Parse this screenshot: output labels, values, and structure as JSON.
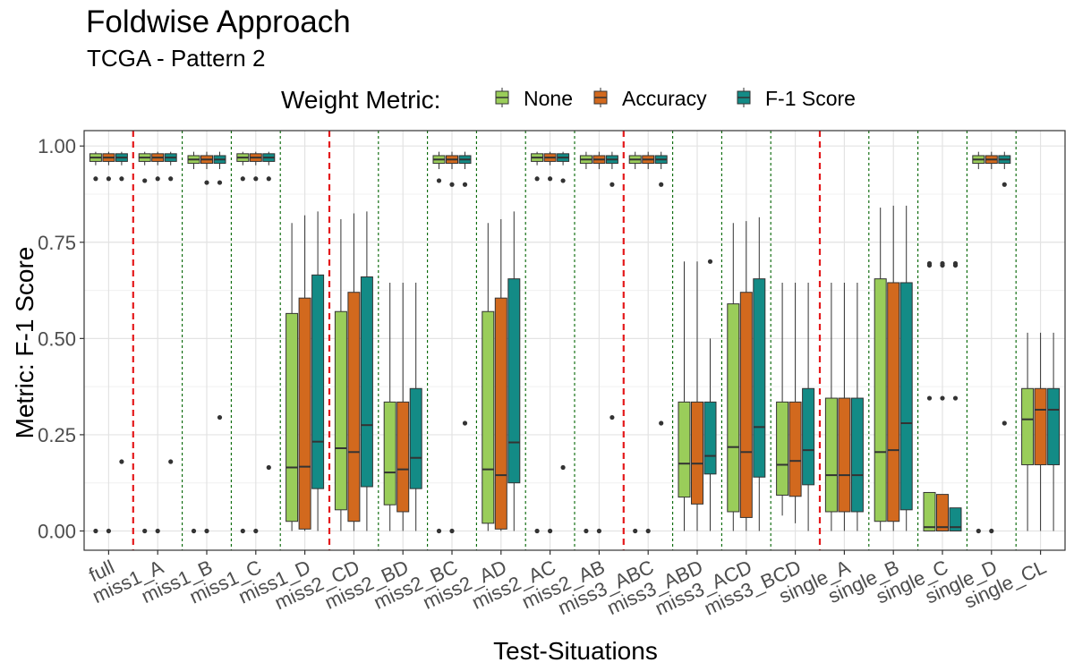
{
  "title": "Foldwise Approach",
  "subtitle": "TCGA - Pattern 2",
  "legend": {
    "title": "Weight Metric:",
    "items": [
      "None",
      "Accuracy",
      "F-1 Score"
    ]
  },
  "colors": {
    "None": "#9ACD5A",
    "Accuracy": "#D2691E",
    "F-1 Score": "#138B86",
    "red_separator": "#E41A1C",
    "green_separator": "#006400"
  },
  "chart_data": {
    "type": "boxplot",
    "title": "Foldwise Approach",
    "subtitle": "TCGA - Pattern 2",
    "xlabel": "Test-Situations",
    "ylabel": "Metric: F-1 Score",
    "ylim": [
      -0.05,
      1.04
    ],
    "y_ticks": [
      "0.00",
      "0.25",
      "0.50",
      "0.75",
      "1.00"
    ],
    "grid": true,
    "legend_position": "top",
    "categories": [
      "full",
      "miss1_A",
      "miss1_B",
      "miss1_C",
      "miss1_D",
      "miss2_CD",
      "miss2_BD",
      "miss2_BC",
      "miss2_AD",
      "miss2_AC",
      "miss2_AB",
      "miss3_ABC",
      "miss3_ABD",
      "miss3_ACD",
      "miss3_BCD",
      "single_A",
      "single_B",
      "single_C",
      "single_D",
      "single_CL"
    ],
    "red_separators_after": [
      "full",
      "miss1_D",
      "miss2_AB",
      "miss3_BCD"
    ],
    "series": [
      {
        "name": "None",
        "boxes": [
          {
            "min": 0.95,
            "q1": 0.96,
            "median": 0.97,
            "q3": 0.98,
            "max": 0.985,
            "outliers": [
              0.915,
              0.0
            ]
          },
          {
            "min": 0.95,
            "q1": 0.96,
            "median": 0.97,
            "q3": 0.98,
            "max": 0.985,
            "outliers": [
              0.91,
              0.0
            ]
          },
          {
            "min": 0.94,
            "q1": 0.955,
            "median": 0.965,
            "q3": 0.975,
            "max": 0.985,
            "outliers": [
              0.0
            ]
          },
          {
            "min": 0.95,
            "q1": 0.96,
            "median": 0.97,
            "q3": 0.98,
            "max": 0.985,
            "outliers": [
              0.915,
              0.0
            ]
          },
          {
            "min": 0.0,
            "q1": 0.025,
            "median": 0.165,
            "q3": 0.565,
            "max": 0.8,
            "outliers": []
          },
          {
            "min": 0.0,
            "q1": 0.055,
            "median": 0.215,
            "q3": 0.57,
            "max": 0.81,
            "outliers": []
          },
          {
            "min": 0.0,
            "q1": 0.068,
            "median": 0.152,
            "q3": 0.335,
            "max": 0.645,
            "outliers": []
          },
          {
            "min": 0.94,
            "q1": 0.955,
            "median": 0.965,
            "q3": 0.975,
            "max": 0.985,
            "outliers": [
              0.91,
              0.0
            ]
          },
          {
            "min": 0.0,
            "q1": 0.02,
            "median": 0.16,
            "q3": 0.57,
            "max": 0.8,
            "outliers": []
          },
          {
            "min": 0.95,
            "q1": 0.96,
            "median": 0.97,
            "q3": 0.98,
            "max": 0.985,
            "outliers": [
              0.915,
              0.0
            ]
          },
          {
            "min": 0.94,
            "q1": 0.955,
            "median": 0.965,
            "q3": 0.975,
            "max": 0.985,
            "outliers": [
              0.0
            ]
          },
          {
            "min": 0.94,
            "q1": 0.955,
            "median": 0.965,
            "q3": 0.975,
            "max": 0.985,
            "outliers": [
              0.0
            ]
          },
          {
            "min": 0.0,
            "q1": 0.088,
            "median": 0.175,
            "q3": 0.335,
            "max": 0.7,
            "outliers": []
          },
          {
            "min": 0.0,
            "q1": 0.05,
            "median": 0.218,
            "q3": 0.59,
            "max": 0.8,
            "outliers": []
          },
          {
            "min": 0.04,
            "q1": 0.093,
            "median": 0.172,
            "q3": 0.335,
            "max": 0.645,
            "outliers": []
          },
          {
            "min": 0.0,
            "q1": 0.05,
            "median": 0.145,
            "q3": 0.345,
            "max": 0.645,
            "outliers": []
          },
          {
            "min": 0.0,
            "q1": 0.025,
            "median": 0.205,
            "q3": 0.655,
            "max": 0.84,
            "outliers": []
          },
          {
            "min": 0.0,
            "q1": 0.0,
            "median": 0.01,
            "q3": 0.1,
            "max": 0.1,
            "outliers": [
              0.695,
              0.69,
              0.345
            ]
          },
          {
            "min": 0.94,
            "q1": 0.955,
            "median": 0.965,
            "q3": 0.975,
            "max": 0.985,
            "outliers": [
              0.0
            ]
          },
          {
            "min": 0.0,
            "q1": 0.172,
            "median": 0.29,
            "q3": 0.37,
            "max": 0.515,
            "outliers": []
          }
        ]
      },
      {
        "name": "Accuracy",
        "boxes": [
          {
            "min": 0.95,
            "q1": 0.96,
            "median": 0.97,
            "q3": 0.98,
            "max": 0.985,
            "outliers": [
              0.915,
              0.0
            ]
          },
          {
            "min": 0.95,
            "q1": 0.96,
            "median": 0.97,
            "q3": 0.98,
            "max": 0.985,
            "outliers": [
              0.915,
              0.0
            ]
          },
          {
            "min": 0.94,
            "q1": 0.955,
            "median": 0.965,
            "q3": 0.975,
            "max": 0.985,
            "outliers": [
              0.905,
              0.0
            ]
          },
          {
            "min": 0.95,
            "q1": 0.96,
            "median": 0.97,
            "q3": 0.98,
            "max": 0.985,
            "outliers": [
              0.915,
              0.0
            ]
          },
          {
            "min": 0.0,
            "q1": 0.005,
            "median": 0.167,
            "q3": 0.605,
            "max": 0.82,
            "outliers": []
          },
          {
            "min": 0.0,
            "q1": 0.025,
            "median": 0.205,
            "q3": 0.62,
            "max": 0.825,
            "outliers": []
          },
          {
            "min": 0.0,
            "q1": 0.05,
            "median": 0.16,
            "q3": 0.335,
            "max": 0.645,
            "outliers": []
          },
          {
            "min": 0.94,
            "q1": 0.955,
            "median": 0.965,
            "q3": 0.975,
            "max": 0.985,
            "outliers": [
              0.9,
              0.0
            ]
          },
          {
            "min": 0.0,
            "q1": 0.005,
            "median": 0.145,
            "q3": 0.605,
            "max": 0.81,
            "outliers": []
          },
          {
            "min": 0.95,
            "q1": 0.96,
            "median": 0.97,
            "q3": 0.98,
            "max": 0.985,
            "outliers": [
              0.915,
              0.0
            ]
          },
          {
            "min": 0.94,
            "q1": 0.955,
            "median": 0.965,
            "q3": 0.975,
            "max": 0.985,
            "outliers": [
              0.0
            ]
          },
          {
            "min": 0.94,
            "q1": 0.955,
            "median": 0.965,
            "q3": 0.975,
            "max": 0.985,
            "outliers": [
              0.0
            ]
          },
          {
            "min": 0.0,
            "q1": 0.07,
            "median": 0.175,
            "q3": 0.335,
            "max": 0.7,
            "outliers": []
          },
          {
            "min": 0.0,
            "q1": 0.035,
            "median": 0.205,
            "q3": 0.62,
            "max": 0.805,
            "outliers": []
          },
          {
            "min": 0.02,
            "q1": 0.09,
            "median": 0.182,
            "q3": 0.335,
            "max": 0.645,
            "outliers": []
          },
          {
            "min": 0.0,
            "q1": 0.05,
            "median": 0.145,
            "q3": 0.345,
            "max": 0.645,
            "outliers": []
          },
          {
            "min": 0.0,
            "q1": 0.025,
            "median": 0.21,
            "q3": 0.645,
            "max": 0.845,
            "outliers": []
          },
          {
            "min": 0.0,
            "q1": 0.0,
            "median": 0.01,
            "q3": 0.095,
            "max": 0.095,
            "outliers": [
              0.695,
              0.69,
              0.345
            ]
          },
          {
            "min": 0.94,
            "q1": 0.955,
            "median": 0.965,
            "q3": 0.975,
            "max": 0.985,
            "outliers": [
              0.0
            ]
          },
          {
            "min": 0.0,
            "q1": 0.172,
            "median": 0.315,
            "q3": 0.37,
            "max": 0.515,
            "outliers": []
          }
        ]
      },
      {
        "name": "F-1 Score",
        "boxes": [
          {
            "min": 0.95,
            "q1": 0.96,
            "median": 0.97,
            "q3": 0.98,
            "max": 0.985,
            "outliers": [
              0.915,
              0.18
            ]
          },
          {
            "min": 0.95,
            "q1": 0.96,
            "median": 0.97,
            "q3": 0.98,
            "max": 0.985,
            "outliers": [
              0.915,
              0.18
            ]
          },
          {
            "min": 0.94,
            "q1": 0.955,
            "median": 0.965,
            "q3": 0.975,
            "max": 0.985,
            "outliers": [
              0.905,
              0.295
            ]
          },
          {
            "min": 0.95,
            "q1": 0.96,
            "median": 0.97,
            "q3": 0.98,
            "max": 0.985,
            "outliers": [
              0.915,
              0.165
            ]
          },
          {
            "min": 0.0,
            "q1": 0.11,
            "median": 0.232,
            "q3": 0.665,
            "max": 0.83,
            "outliers": []
          },
          {
            "min": 0.0,
            "q1": 0.115,
            "median": 0.275,
            "q3": 0.66,
            "max": 0.83,
            "outliers": []
          },
          {
            "min": 0.0,
            "q1": 0.11,
            "median": 0.19,
            "q3": 0.37,
            "max": 0.645,
            "outliers": []
          },
          {
            "min": 0.94,
            "q1": 0.955,
            "median": 0.965,
            "q3": 0.975,
            "max": 0.985,
            "outliers": [
              0.9,
              0.28
            ]
          },
          {
            "min": 0.0,
            "q1": 0.125,
            "median": 0.23,
            "q3": 0.655,
            "max": 0.83,
            "outliers": []
          },
          {
            "min": 0.95,
            "q1": 0.96,
            "median": 0.97,
            "q3": 0.98,
            "max": 0.985,
            "outliers": [
              0.91,
              0.165
            ]
          },
          {
            "min": 0.94,
            "q1": 0.955,
            "median": 0.965,
            "q3": 0.975,
            "max": 0.985,
            "outliers": [
              0.9,
              0.295
            ]
          },
          {
            "min": 0.94,
            "q1": 0.955,
            "median": 0.965,
            "q3": 0.975,
            "max": 0.985,
            "outliers": [
              0.9,
              0.28
            ]
          },
          {
            "min": 0.0,
            "q1": 0.148,
            "median": 0.195,
            "q3": 0.335,
            "max": 0.5,
            "outliers": [
              0.7
            ]
          },
          {
            "min": 0.0,
            "q1": 0.14,
            "median": 0.27,
            "q3": 0.655,
            "max": 0.815,
            "outliers": []
          },
          {
            "min": 0.0,
            "q1": 0.12,
            "median": 0.21,
            "q3": 0.37,
            "max": 0.645,
            "outliers": []
          },
          {
            "min": 0.0,
            "q1": 0.05,
            "median": 0.145,
            "q3": 0.345,
            "max": 0.645,
            "outliers": []
          },
          {
            "min": 0.0,
            "q1": 0.055,
            "median": 0.28,
            "q3": 0.645,
            "max": 0.845,
            "outliers": []
          },
          {
            "min": 0.0,
            "q1": 0.0,
            "median": 0.01,
            "q3": 0.06,
            "max": 0.06,
            "outliers": [
              0.695,
              0.69,
              0.345
            ]
          },
          {
            "min": 0.94,
            "q1": 0.955,
            "median": 0.965,
            "q3": 0.975,
            "max": 0.985,
            "outliers": [
              0.9,
              0.28
            ]
          },
          {
            "min": 0.0,
            "q1": 0.172,
            "median": 0.315,
            "q3": 0.37,
            "max": 0.515,
            "outliers": []
          }
        ]
      }
    ]
  }
}
